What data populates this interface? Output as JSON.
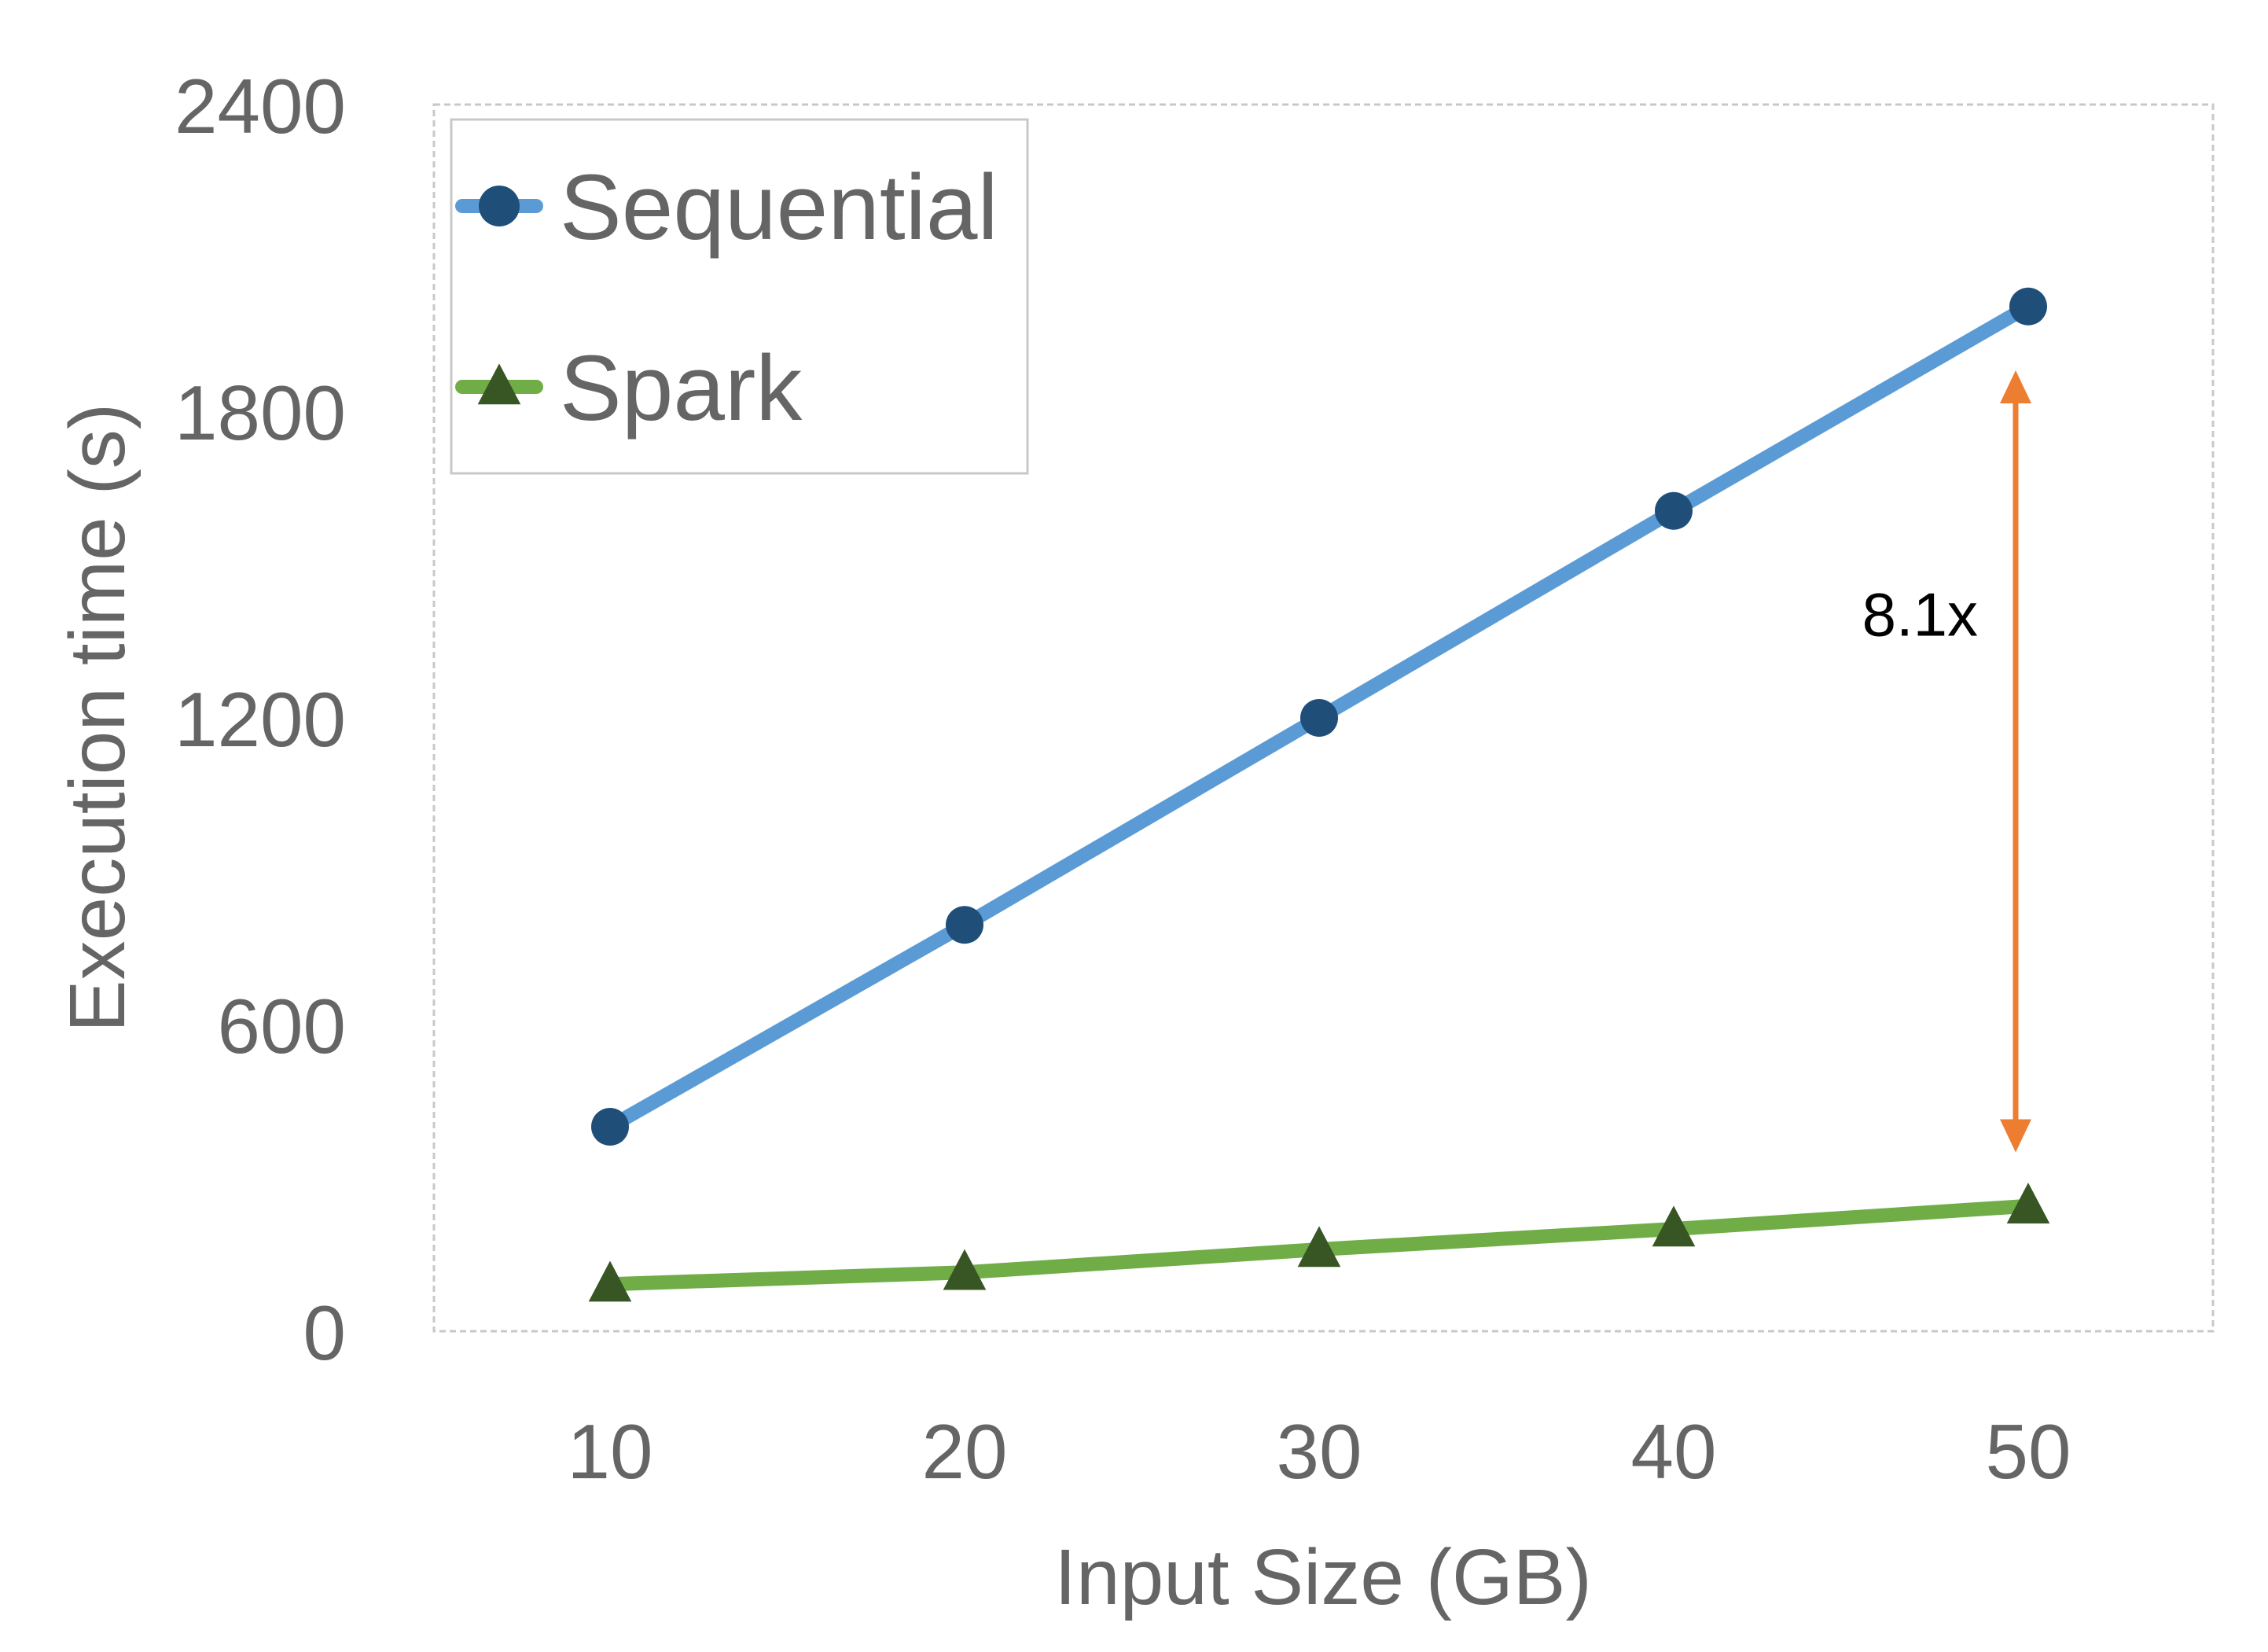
{
  "chart_data": {
    "type": "line",
    "x": [
      10,
      20,
      30,
      40,
      50
    ],
    "xlabel": "Input Size (GB)",
    "ylabel": "Execution time (s)",
    "ylim": [
      0,
      2400
    ],
    "yticks": [
      0,
      600,
      1200,
      1800,
      2400
    ],
    "grid": false,
    "legend_position": "top-left",
    "series": [
      {
        "name": "Sequential",
        "values": [
          400,
          795,
          1200,
          1605,
          2005
        ],
        "color": "#5b9bd5",
        "marker": "circle",
        "marker_color": "#1f4e79"
      },
      {
        "name": "Spark",
        "values": [
          92,
          115,
          160,
          200,
          245
        ],
        "color": "#70ad47",
        "marker": "triangle",
        "marker_color": "#375623"
      }
    ],
    "annotation": {
      "text": "8.1x",
      "x": 50,
      "y_from": 1880,
      "y_to": 350,
      "color": "#ed7d31"
    }
  }
}
